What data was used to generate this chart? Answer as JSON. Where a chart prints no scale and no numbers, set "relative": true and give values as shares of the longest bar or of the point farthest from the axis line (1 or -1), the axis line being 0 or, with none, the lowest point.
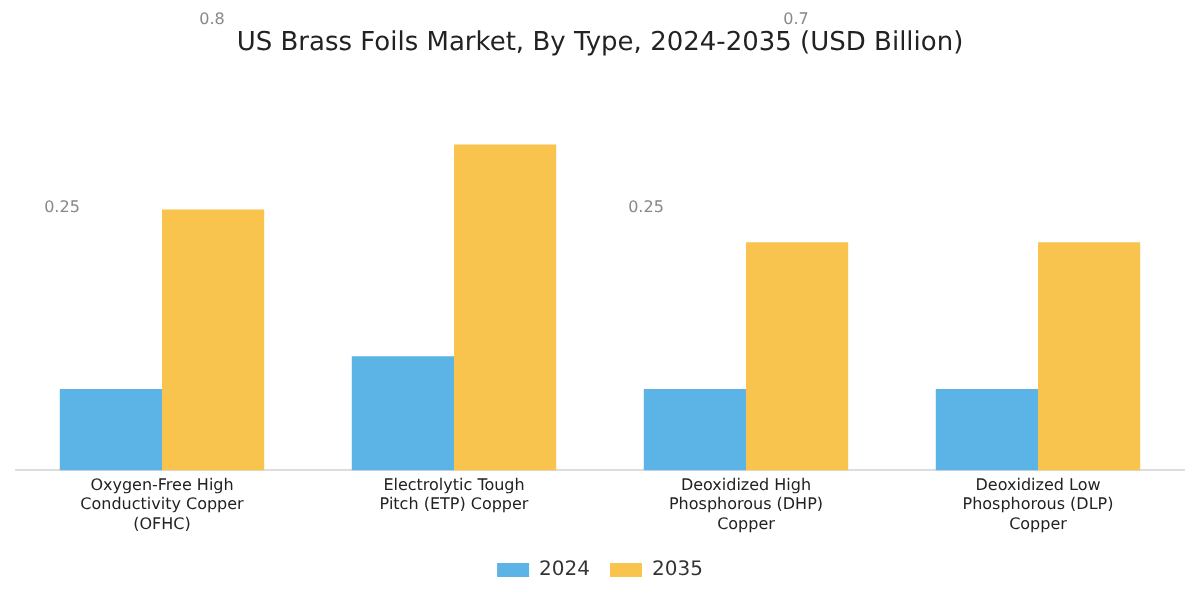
{
  "chart_data": {
    "type": "bar",
    "title": "US Brass Foils Market, By Type, 2024-2035 (USD Billion)",
    "relative": true,
    "categories": [
      "Oxygen-Free High Conductivity Copper (OFHC)",
      "Electrolytic Tough Pitch (ETP) Copper",
      "Deoxidized High Phosphorous (DHP) Copper",
      "Deoxidized Low Phosphorous (DLP) Copper"
    ],
    "series": [
      {
        "name": "2024",
        "color": "#5cb3e6",
        "values": [
          0.25,
          0.35,
          0.25,
          0.25
        ]
      },
      {
        "name": "2035",
        "color": "#f8c44e",
        "values": [
          0.8,
          1,
          0.7,
          0.7
        ]
      }
    ],
    "annotations": [
      "0.8",
      "0.25",
      "0.7",
      "0.25"
    ],
    "legend": "bottom",
    "grid": false
  }
}
